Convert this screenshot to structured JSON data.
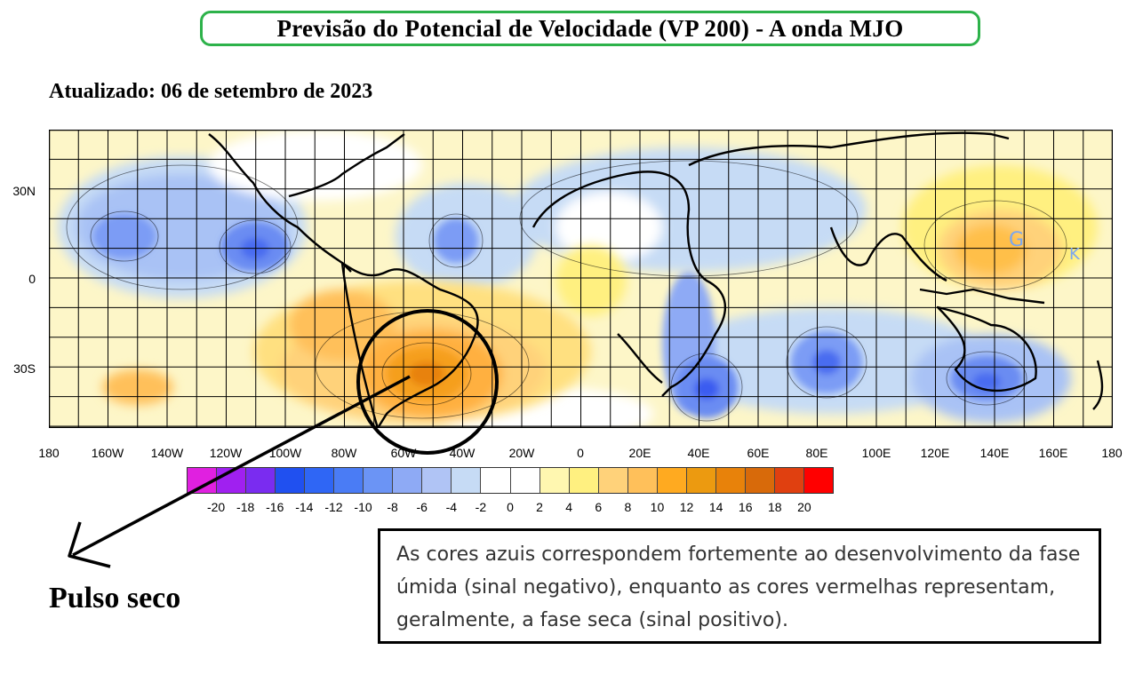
{
  "title": "Previsão do Potencial de Velocidade (VP 200) - A onda MJO",
  "updated": "Atualizado: 06 de setembro de 2023",
  "map": {
    "lat_labels": [
      "30N",
      "0",
      "30S"
    ],
    "lon_labels": [
      "180",
      "160W",
      "140W",
      "120W",
      "100W",
      "80W",
      "60W",
      "40W",
      "20W",
      "0",
      "20E",
      "40E",
      "60E",
      "80E",
      "100E",
      "120E",
      "140E",
      "160E",
      "180"
    ],
    "markers": [
      {
        "text": "G",
        "color": "#7aa6f0"
      },
      {
        "text": "K",
        "color": "#7aa6f0"
      }
    ],
    "highlight": "circle around southeastern South America"
  },
  "colorbar": {
    "colors": [
      "#e020e0",
      "#a020f0",
      "#7a2cf0",
      "#2050f0",
      "#2f66f5",
      "#4a7cf5",
      "#6b94f5",
      "#8eaaf5",
      "#b0c4f5",
      "#c6dbf5",
      "#ffffff",
      "#ffffff",
      "#fff7b0",
      "#fff080",
      "#ffd27a",
      "#ffc05a",
      "#ffaa20",
      "#ec9a10",
      "#e8820a",
      "#d86a0a",
      "#e04010",
      "#ff0000"
    ],
    "labels": [
      "-20",
      "-18",
      "-16",
      "-14",
      "-12",
      "-10",
      "-8",
      "-6",
      "-4",
      "-2",
      "0",
      "2",
      "4",
      "6",
      "8",
      "10",
      "12",
      "14",
      "16",
      "18",
      "20"
    ]
  },
  "annotation": "Pulso seco",
  "info_text": "As cores azuis correspondem fortemente ao desenvolvimento da fase úmida (sinal negativo), enquanto as cores vermelhas representam, geralmente, a fase seca (sinal positivo)."
}
